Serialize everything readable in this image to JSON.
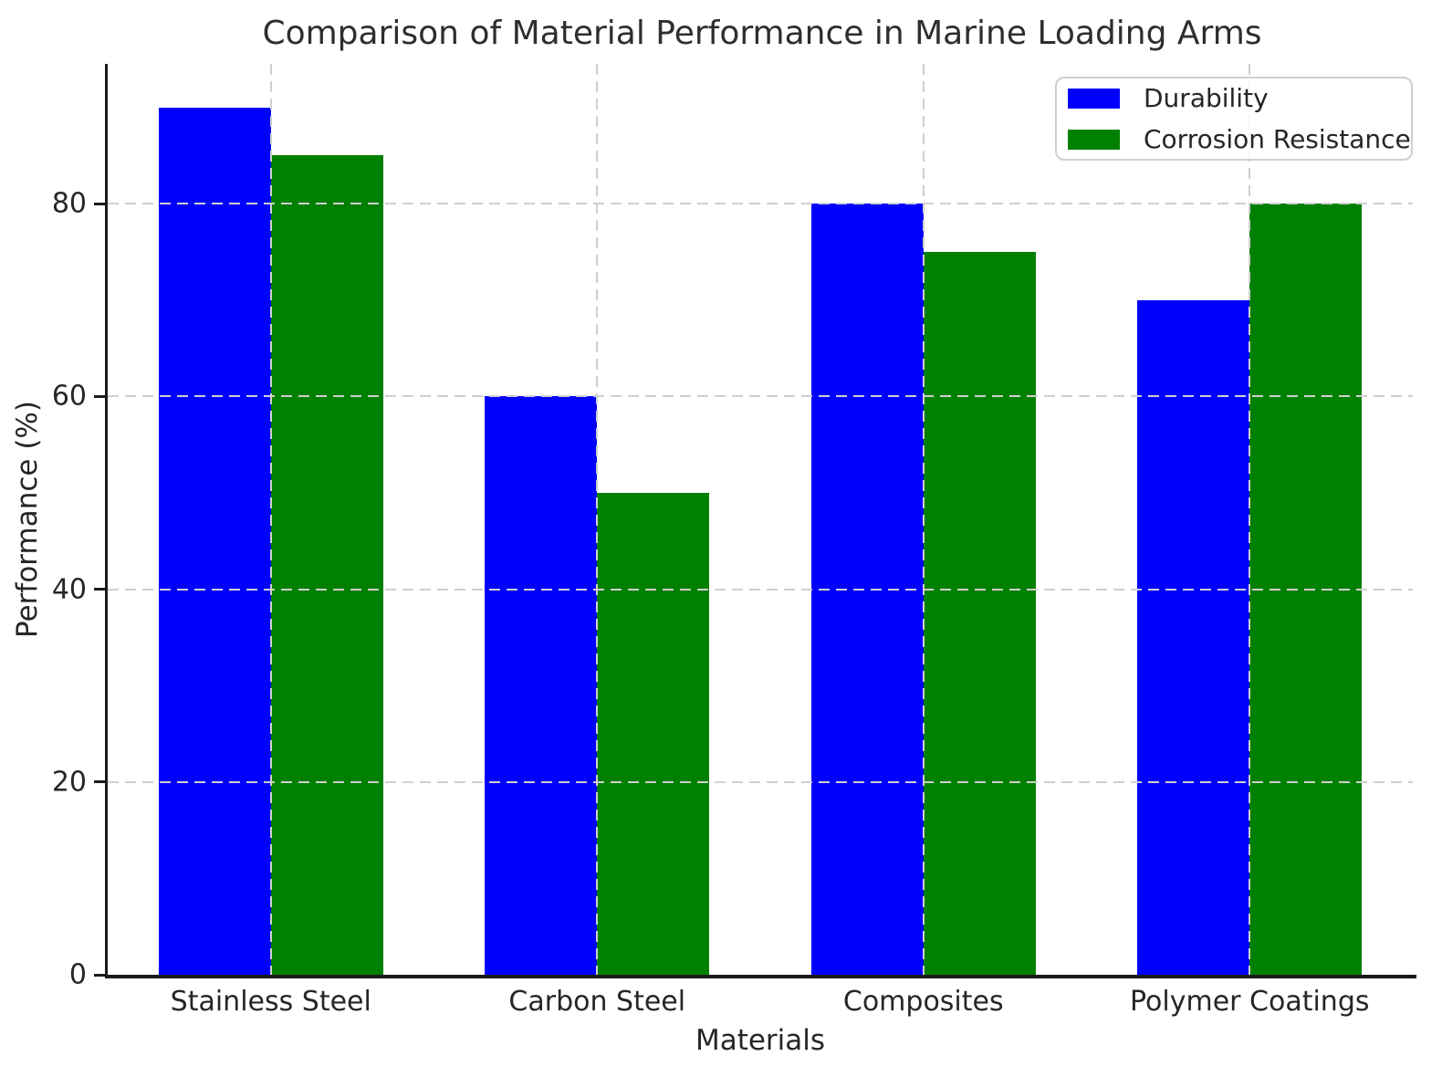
{
  "chart_data": {
    "type": "bar",
    "title": "Comparison of Material Performance in Marine Loading Arms",
    "xlabel": "Materials",
    "ylabel": "Performance (%)",
    "categories": [
      "Stainless Steel",
      "Carbon Steel",
      "Composites",
      "Polymer Coatings"
    ],
    "series": [
      {
        "name": "Durability",
        "color": "#0000ff",
        "values": [
          90,
          60,
          80,
          70
        ]
      },
      {
        "name": "Corrosion Resistance",
        "color": "#008000",
        "values": [
          85,
          50,
          75,
          80
        ]
      }
    ],
    "ylim": [
      0,
      94.5
    ],
    "yticks": [
      0,
      20,
      40,
      60,
      80
    ],
    "grid": {
      "visible": true,
      "style": "dashed",
      "color": "#cfcfcf",
      "on_top_of_bars": true
    },
    "legend": {
      "position": "top-right"
    },
    "colors": {
      "text": "#262626",
      "spine": "#1a1a1a",
      "grid": "#cfcfcf",
      "background": "#ffffff"
    }
  }
}
